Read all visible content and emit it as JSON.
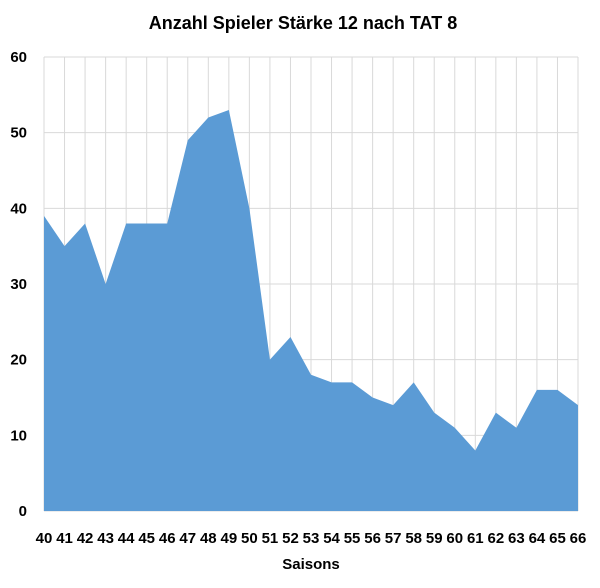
{
  "chart_data": {
    "type": "area",
    "title": "Anzahl Spieler Stärke 12 nach TAT 8",
    "xlabel": "Saisons",
    "ylabel": "",
    "categories": [
      "40",
      "41",
      "42",
      "43",
      "44",
      "45",
      "46",
      "47",
      "48",
      "49",
      "50",
      "51",
      "52",
      "53",
      "54",
      "55",
      "56",
      "57",
      "58",
      "59",
      "60",
      "61",
      "62",
      "63",
      "64",
      "65",
      "66"
    ],
    "series": [
      {
        "values": [
          39,
          35,
          38,
          30,
          38,
          38,
          38,
          49,
          52,
          53,
          40,
          20,
          23,
          18,
          17,
          17,
          15,
          14,
          17,
          13,
          11,
          8,
          13,
          11,
          16,
          16,
          14
        ]
      }
    ],
    "ylim": [
      0,
      60
    ],
    "yticks": [
      0,
      10,
      20,
      30,
      40,
      50,
      60
    ],
    "grid": true,
    "legend": "none",
    "fill_color": "#5b9bd5",
    "grid_color": "#d9d9d9"
  }
}
